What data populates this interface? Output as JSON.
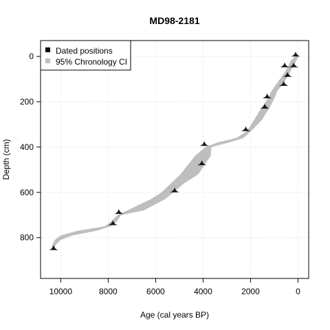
{
  "chart_data": {
    "type": "area",
    "title": "MD98-2181",
    "xlabel": "Age (cal years BP)",
    "ylabel": "Depth (cm)",
    "xlim": [
      10850,
      -450
    ],
    "ylim": [
      980,
      -70
    ],
    "x_reversed": true,
    "y_reversed": true,
    "grid": true,
    "legend_position": "top-left",
    "x_ticks": [
      10000,
      8000,
      6000,
      4000,
      2000,
      0
    ],
    "x_tick_labels": [
      "10000",
      "8000",
      "6000",
      "4000",
      "2000",
      "0"
    ],
    "y_ticks": [
      0,
      200,
      400,
      600,
      800
    ],
    "y_tick_labels": [
      "0",
      "200",
      "400",
      "600",
      "800"
    ],
    "legend": [
      {
        "label": "Dated positions",
        "color": "#000000"
      },
      {
        "label": "95% Chronology CI",
        "color": "#bebebe"
      }
    ],
    "ci_band": {
      "depth": [
        0,
        20,
        50,
        80,
        120,
        150,
        190,
        230,
        280,
        330,
        360,
        380,
        400,
        440,
        480,
        520,
        560,
        600,
        630,
        680,
        700,
        730,
        750,
        770,
        790,
        810,
        830,
        850
      ],
      "age_young": [
        -20,
        80,
        240,
        380,
        620,
        860,
        1020,
        1220,
        1520,
        1980,
        2300,
        2900,
        3650,
        3680,
        3950,
        4200,
        4800,
        5250,
        5600,
        6500,
        7450,
        7650,
        7900,
        8500,
        9500,
        10000,
        10200,
        10300
      ],
      "age_old": [
        120,
        310,
        450,
        620,
        900,
        1100,
        1300,
        1560,
        1850,
        2150,
        2600,
        3400,
        3900,
        4350,
        4650,
        4950,
        5350,
        5750,
        6200,
        7200,
        7600,
        7900,
        8150,
        9300,
        10000,
        10250,
        10350,
        10400
      ]
    },
    "dated_positions": [
      {
        "age": 100,
        "depth": 0
      },
      {
        "age": 180,
        "depth": 48
      },
      {
        "age": 560,
        "depth": 48
      },
      {
        "age": 440,
        "depth": 90
      },
      {
        "age": 600,
        "depth": 130
      },
      {
        "age": 1300,
        "depth": 185
      },
      {
        "age": 1400,
        "depth": 230
      },
      {
        "age": 2200,
        "depth": 330
      },
      {
        "age": 3950,
        "depth": 395
      },
      {
        "age": 4050,
        "depth": 480
      },
      {
        "age": 5200,
        "depth": 600
      },
      {
        "age": 7550,
        "depth": 695
      },
      {
        "age": 7800,
        "depth": 745
      },
      {
        "age": 10300,
        "depth": 855
      }
    ]
  }
}
